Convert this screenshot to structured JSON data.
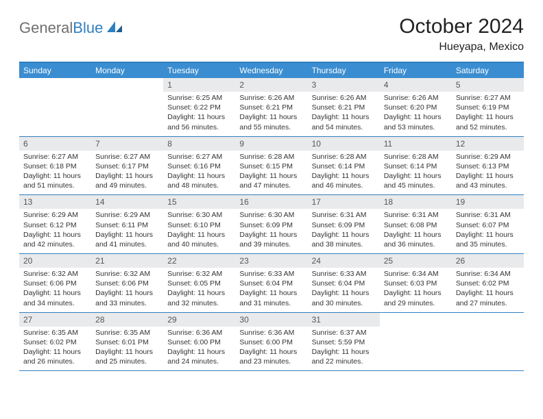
{
  "logo": {
    "part1": "General",
    "part2": "Blue"
  },
  "title": "October 2024",
  "subtitle": "Hueyapa, Mexico",
  "colors": {
    "header_bar": "#3a8dd0",
    "rule": "#2f7fbf",
    "daynum_bg": "#e9eaec",
    "text": "#333333",
    "logo_gray": "#6f6f6f",
    "logo_blue": "#2f7fbf"
  },
  "days_of_week": [
    "Sunday",
    "Monday",
    "Tuesday",
    "Wednesday",
    "Thursday",
    "Friday",
    "Saturday"
  ],
  "weeks": [
    [
      null,
      null,
      {
        "n": "1",
        "sr": "Sunrise: 6:25 AM",
        "ss": "Sunset: 6:22 PM",
        "dl1": "Daylight: 11 hours",
        "dl2": "and 56 minutes."
      },
      {
        "n": "2",
        "sr": "Sunrise: 6:26 AM",
        "ss": "Sunset: 6:21 PM",
        "dl1": "Daylight: 11 hours",
        "dl2": "and 55 minutes."
      },
      {
        "n": "3",
        "sr": "Sunrise: 6:26 AM",
        "ss": "Sunset: 6:21 PM",
        "dl1": "Daylight: 11 hours",
        "dl2": "and 54 minutes."
      },
      {
        "n": "4",
        "sr": "Sunrise: 6:26 AM",
        "ss": "Sunset: 6:20 PM",
        "dl1": "Daylight: 11 hours",
        "dl2": "and 53 minutes."
      },
      {
        "n": "5",
        "sr": "Sunrise: 6:27 AM",
        "ss": "Sunset: 6:19 PM",
        "dl1": "Daylight: 11 hours",
        "dl2": "and 52 minutes."
      }
    ],
    [
      {
        "n": "6",
        "sr": "Sunrise: 6:27 AM",
        "ss": "Sunset: 6:18 PM",
        "dl1": "Daylight: 11 hours",
        "dl2": "and 51 minutes."
      },
      {
        "n": "7",
        "sr": "Sunrise: 6:27 AM",
        "ss": "Sunset: 6:17 PM",
        "dl1": "Daylight: 11 hours",
        "dl2": "and 49 minutes."
      },
      {
        "n": "8",
        "sr": "Sunrise: 6:27 AM",
        "ss": "Sunset: 6:16 PM",
        "dl1": "Daylight: 11 hours",
        "dl2": "and 48 minutes."
      },
      {
        "n": "9",
        "sr": "Sunrise: 6:28 AM",
        "ss": "Sunset: 6:15 PM",
        "dl1": "Daylight: 11 hours",
        "dl2": "and 47 minutes."
      },
      {
        "n": "10",
        "sr": "Sunrise: 6:28 AM",
        "ss": "Sunset: 6:14 PM",
        "dl1": "Daylight: 11 hours",
        "dl2": "and 46 minutes."
      },
      {
        "n": "11",
        "sr": "Sunrise: 6:28 AM",
        "ss": "Sunset: 6:14 PM",
        "dl1": "Daylight: 11 hours",
        "dl2": "and 45 minutes."
      },
      {
        "n": "12",
        "sr": "Sunrise: 6:29 AM",
        "ss": "Sunset: 6:13 PM",
        "dl1": "Daylight: 11 hours",
        "dl2": "and 43 minutes."
      }
    ],
    [
      {
        "n": "13",
        "sr": "Sunrise: 6:29 AM",
        "ss": "Sunset: 6:12 PM",
        "dl1": "Daylight: 11 hours",
        "dl2": "and 42 minutes."
      },
      {
        "n": "14",
        "sr": "Sunrise: 6:29 AM",
        "ss": "Sunset: 6:11 PM",
        "dl1": "Daylight: 11 hours",
        "dl2": "and 41 minutes."
      },
      {
        "n": "15",
        "sr": "Sunrise: 6:30 AM",
        "ss": "Sunset: 6:10 PM",
        "dl1": "Daylight: 11 hours",
        "dl2": "and 40 minutes."
      },
      {
        "n": "16",
        "sr": "Sunrise: 6:30 AM",
        "ss": "Sunset: 6:09 PM",
        "dl1": "Daylight: 11 hours",
        "dl2": "and 39 minutes."
      },
      {
        "n": "17",
        "sr": "Sunrise: 6:31 AM",
        "ss": "Sunset: 6:09 PM",
        "dl1": "Daylight: 11 hours",
        "dl2": "and 38 minutes."
      },
      {
        "n": "18",
        "sr": "Sunrise: 6:31 AM",
        "ss": "Sunset: 6:08 PM",
        "dl1": "Daylight: 11 hours",
        "dl2": "and 36 minutes."
      },
      {
        "n": "19",
        "sr": "Sunrise: 6:31 AM",
        "ss": "Sunset: 6:07 PM",
        "dl1": "Daylight: 11 hours",
        "dl2": "and 35 minutes."
      }
    ],
    [
      {
        "n": "20",
        "sr": "Sunrise: 6:32 AM",
        "ss": "Sunset: 6:06 PM",
        "dl1": "Daylight: 11 hours",
        "dl2": "and 34 minutes."
      },
      {
        "n": "21",
        "sr": "Sunrise: 6:32 AM",
        "ss": "Sunset: 6:06 PM",
        "dl1": "Daylight: 11 hours",
        "dl2": "and 33 minutes."
      },
      {
        "n": "22",
        "sr": "Sunrise: 6:32 AM",
        "ss": "Sunset: 6:05 PM",
        "dl1": "Daylight: 11 hours",
        "dl2": "and 32 minutes."
      },
      {
        "n": "23",
        "sr": "Sunrise: 6:33 AM",
        "ss": "Sunset: 6:04 PM",
        "dl1": "Daylight: 11 hours",
        "dl2": "and 31 minutes."
      },
      {
        "n": "24",
        "sr": "Sunrise: 6:33 AM",
        "ss": "Sunset: 6:04 PM",
        "dl1": "Daylight: 11 hours",
        "dl2": "and 30 minutes."
      },
      {
        "n": "25",
        "sr": "Sunrise: 6:34 AM",
        "ss": "Sunset: 6:03 PM",
        "dl1": "Daylight: 11 hours",
        "dl2": "and 29 minutes."
      },
      {
        "n": "26",
        "sr": "Sunrise: 6:34 AM",
        "ss": "Sunset: 6:02 PM",
        "dl1": "Daylight: 11 hours",
        "dl2": "and 27 minutes."
      }
    ],
    [
      {
        "n": "27",
        "sr": "Sunrise: 6:35 AM",
        "ss": "Sunset: 6:02 PM",
        "dl1": "Daylight: 11 hours",
        "dl2": "and 26 minutes."
      },
      {
        "n": "28",
        "sr": "Sunrise: 6:35 AM",
        "ss": "Sunset: 6:01 PM",
        "dl1": "Daylight: 11 hours",
        "dl2": "and 25 minutes."
      },
      {
        "n": "29",
        "sr": "Sunrise: 6:36 AM",
        "ss": "Sunset: 6:00 PM",
        "dl1": "Daylight: 11 hours",
        "dl2": "and 24 minutes."
      },
      {
        "n": "30",
        "sr": "Sunrise: 6:36 AM",
        "ss": "Sunset: 6:00 PM",
        "dl1": "Daylight: 11 hours",
        "dl2": "and 23 minutes."
      },
      {
        "n": "31",
        "sr": "Sunrise: 6:37 AM",
        "ss": "Sunset: 5:59 PM",
        "dl1": "Daylight: 11 hours",
        "dl2": "and 22 minutes."
      },
      null,
      null
    ]
  ]
}
